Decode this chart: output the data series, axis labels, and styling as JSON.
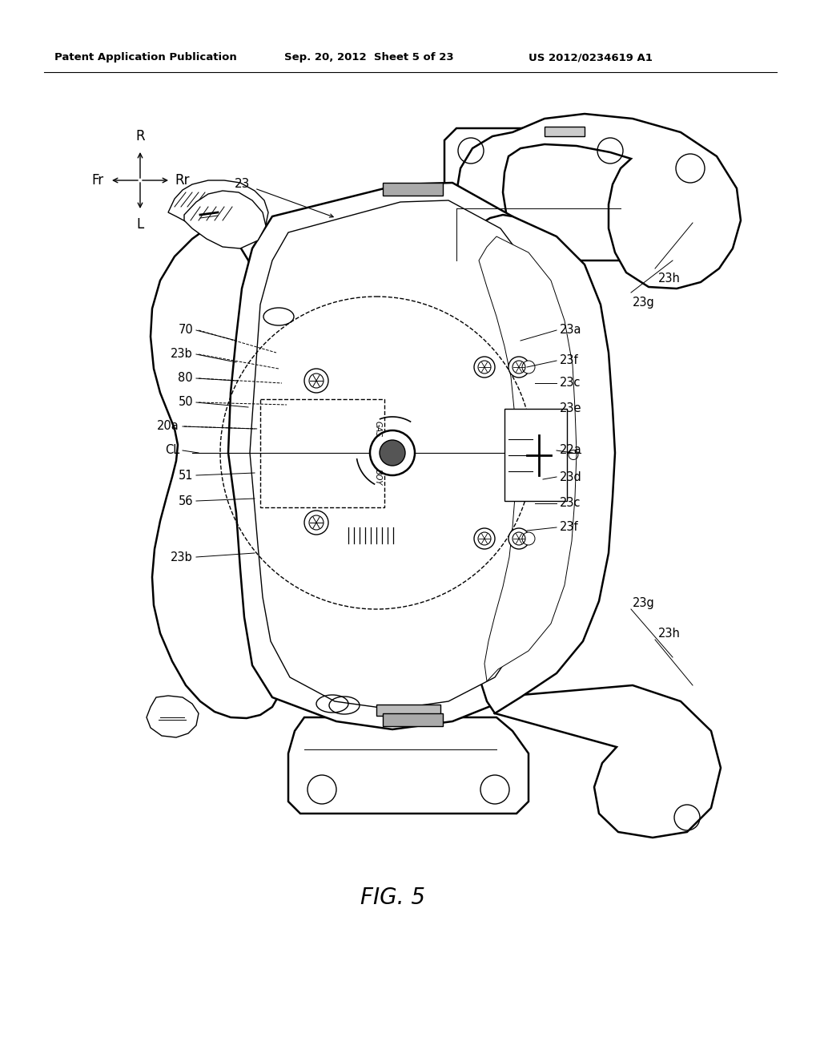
{
  "bg_color": "#ffffff",
  "header_left": "Patent Application Publication",
  "header_mid": "Sep. 20, 2012  Sheet 5 of 23",
  "header_right": "US 2012/0234619 A1",
  "fig_label": "FIG. 5"
}
